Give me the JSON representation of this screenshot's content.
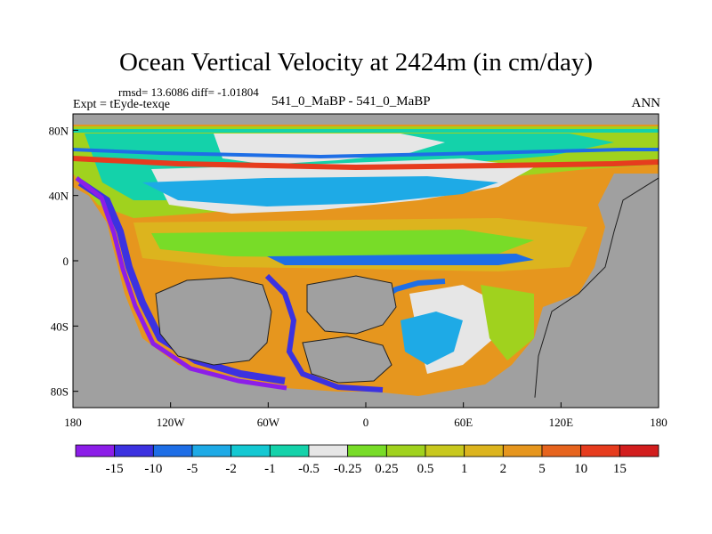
{
  "chart_data": {
    "type": "heatmap",
    "title": "Ocean Vertical Velocity at 2424m (in cm/day)",
    "stats": "rmsd= 13.6086 diff= -1.01804",
    "experiment": "Expt = tEyde-texqe",
    "difference": "541_0_MaBP - 541_0_MaBP",
    "season": "ANN",
    "x_ticks": [
      "180",
      "120W",
      "60W",
      "0",
      "60E",
      "120E",
      "180"
    ],
    "x_tick_values": [
      -180,
      -120,
      -60,
      0,
      60,
      120,
      180
    ],
    "y_ticks": [
      "80N",
      "40N",
      "0",
      "40S",
      "80S"
    ],
    "y_tick_values": [
      80,
      40,
      0,
      -40,
      -80
    ],
    "xlim": [
      -180,
      180
    ],
    "ylim": [
      -90,
      90
    ],
    "land_color": "#a0a0a0",
    "colorbar": {
      "labels": [
        "-15",
        "-10",
        "-5",
        "-2",
        "-1",
        "-0.5",
        "-0.25",
        "0.25",
        "0.5",
        "1",
        "2",
        "5",
        "10",
        "15"
      ],
      "colors": [
        "#8c1ee8",
        "#3c32e0",
        "#1e6ee6",
        "#1eaae6",
        "#14c8d2",
        "#14d2aa",
        "#e6e6e6",
        "#78dc28",
        "#a0d21e",
        "#c8c81e",
        "#dcb41e",
        "#e6961e",
        "#e6641e",
        "#e63c1e",
        "#d21e1e"
      ]
    }
  }
}
